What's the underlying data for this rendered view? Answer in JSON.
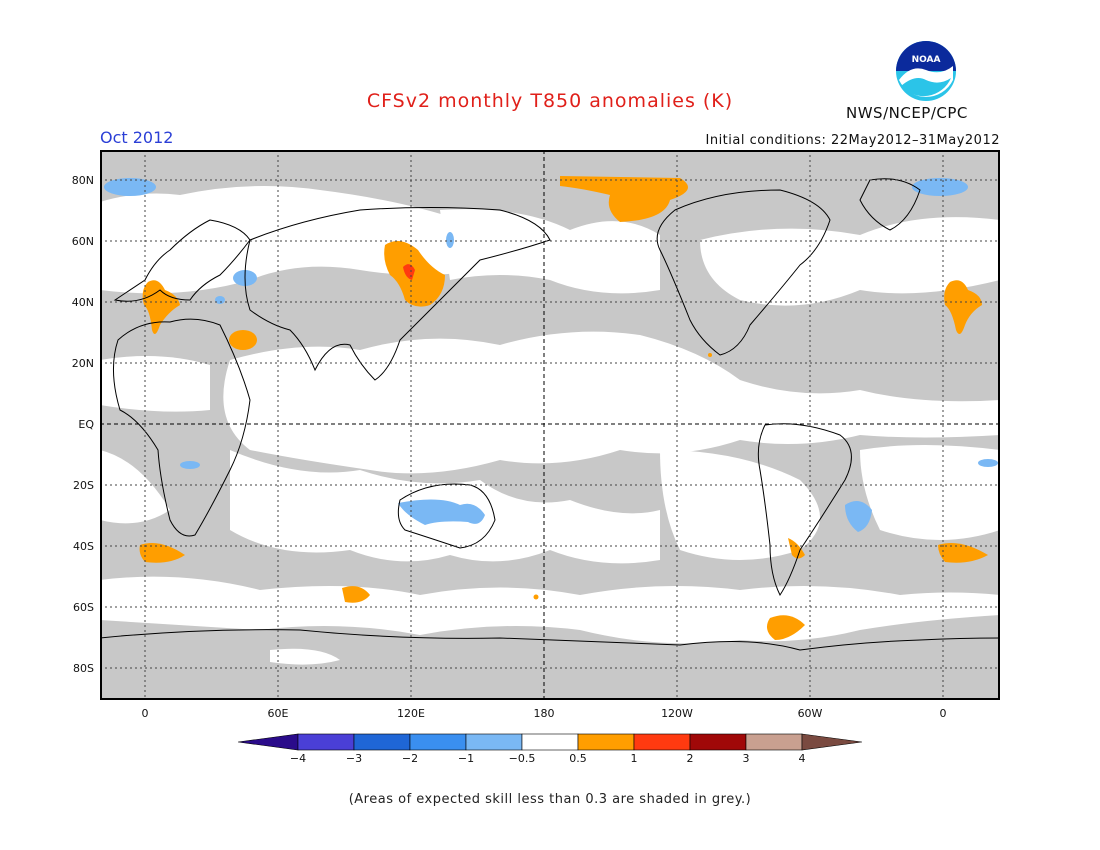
{
  "header": {
    "title": "CFSv2 monthly T850 anomalies (K)",
    "month": "Oct 2012",
    "initial_conditions": "Initial conditions: 22May2012–31May2012",
    "agency": "NWS/NCEP/CPC",
    "logo_text": "NOAA"
  },
  "map": {
    "lat_labels": [
      "80N",
      "60N",
      "40N",
      "20N",
      "EQ",
      "20S",
      "40S",
      "60S",
      "80S"
    ],
    "lon_labels": [
      "0",
      "60E",
      "120E",
      "180",
      "120W",
      "60W",
      "0"
    ],
    "center_longitude": "180",
    "skill_mask_color": "#c8c8c8",
    "background_color": "#ffffff"
  },
  "colorbar": {
    "labels": [
      "−4",
      "−3",
      "−2",
      "−1",
      "−0.5",
      "0.5",
      "1",
      "2",
      "3",
      "4"
    ],
    "colors": [
      "#2a0b8a",
      "#4a3fd6",
      "#1f66d6",
      "#3a8ff0",
      "#7ab8f4",
      "#ffffff",
      "#ff9e00",
      "#ff3a10",
      "#a00808",
      "#c9a090",
      "#7a4a40"
    ]
  },
  "footnote": "(Areas of expected skill less than 0.3 are shaded in grey.)"
}
